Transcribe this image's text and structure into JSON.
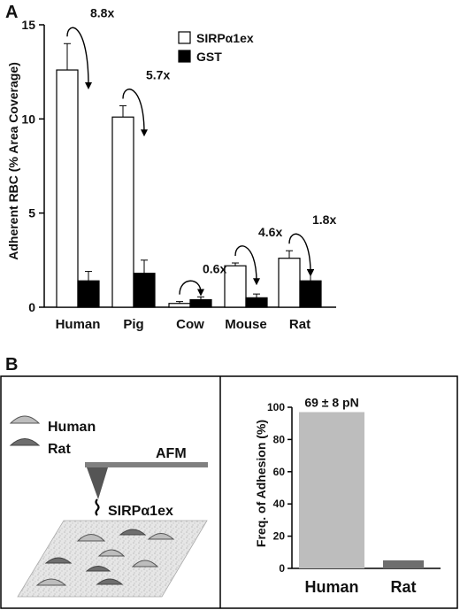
{
  "panel_a": {
    "letter": "A",
    "chart_data": {
      "type": "bar",
      "categories": [
        "Human",
        "Pig",
        "Cow",
        "Mouse",
        "Rat"
      ],
      "series": [
        {
          "name": "SIRPα1ex",
          "values": [
            12.6,
            10.1,
            0.2,
            2.2,
            2.6
          ],
          "errors": [
            1.4,
            0.6,
            0.1,
            0.15,
            0.4
          ],
          "color": "#ffffff"
        },
        {
          "name": "GST",
          "values": [
            1.4,
            1.8,
            0.4,
            0.5,
            1.4
          ],
          "errors": [
            0.5,
            0.7,
            0.15,
            0.2,
            0.6
          ],
          "color": "#000000"
        }
      ],
      "ratio_labels": [
        "8.8x",
        "5.7x",
        "0.6x",
        "4.6x",
        "1.8x"
      ],
      "ylabel": "Adherent RBC  (% Area Coverage)",
      "ylim": [
        0,
        15
      ],
      "yticks": [
        "0",
        "5",
        "10",
        "15"
      ],
      "legend_position": "top-right",
      "grid": false
    }
  },
  "panel_b": {
    "letter": "B",
    "schematic": {
      "legend_human": "Human",
      "legend_rat": "Rat",
      "afm_label": "AFM",
      "probe_label": "SIRPα1ex"
    },
    "chart_data": {
      "type": "bar",
      "categories": [
        "Human",
        "Rat"
      ],
      "values": [
        97,
        5
      ],
      "colors": [
        "#bdbdbd",
        "#6e6e6e"
      ],
      "annotation": "69 ± 8 pN",
      "ylabel": "Freq. of Adhesion (%)",
      "ylim": [
        0,
        100
      ],
      "yticks": [
        "0",
        "20",
        "40",
        "60",
        "80",
        "100"
      ],
      "grid": false
    }
  }
}
